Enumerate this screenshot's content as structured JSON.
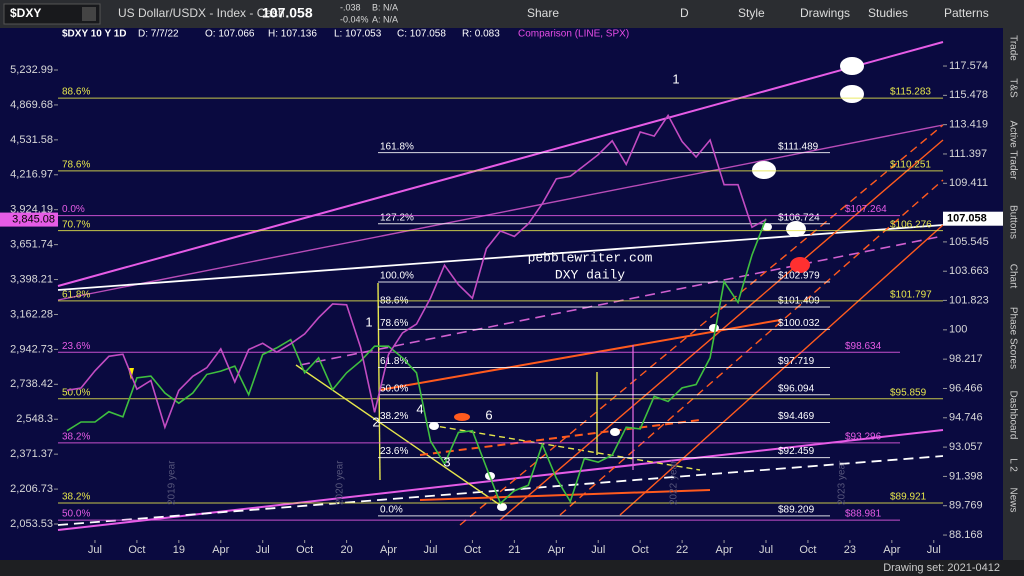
{
  "toolbar": {
    "symbol": "$DXY",
    "description": "US Dollar/USDX - Index - Cash",
    "last": "107.058",
    "change": "-.038",
    "change_pct": "-0.04%",
    "bid": "B: N/A",
    "ask": "A: N/A",
    "buttons": [
      "Share",
      "D",
      "Style",
      "Drawings",
      "Studies",
      "Patterns"
    ]
  },
  "header": {
    "symbol": "$DXY 10 Y 1D",
    "fields": [
      "D: 7/7/22",
      "O: 107.066",
      "H: 107.136",
      "L: 107.053",
      "C: 107.058",
      "R: 0.083"
    ],
    "comparison": "Comparison (LINE, SPX)"
  },
  "chart_data": {
    "type": "line",
    "categories": [
      null,
      null,
      "Jul",
      null,
      null,
      "Oct",
      null,
      null,
      "19",
      null,
      null,
      "Apr",
      null,
      null,
      "Jul",
      null,
      null,
      "Oct",
      null,
      null,
      "20",
      null,
      null,
      "Apr",
      null,
      null,
      "Jul",
      null,
      null,
      "Oct",
      null,
      null,
      "21",
      null,
      null,
      "Apr",
      null,
      null,
      "Jul",
      null,
      null,
      "Oct",
      null,
      null,
      "22",
      null,
      null,
      "Apr",
      null,
      null,
      "Jul",
      null,
      null,
      "Oct",
      null,
      null,
      "23",
      null,
      null,
      "Apr",
      null,
      null,
      "Jul"
    ],
    "series": [
      {
        "name": "$DXY",
        "color": "#3fbf3f",
        "values": [
          94.0,
          94.5,
          94.5,
          95.1,
          94.8,
          97.1,
          97.2,
          96.2,
          95.6,
          96.2,
          97.3,
          97.5,
          97.8,
          96.1,
          98.5,
          98.9,
          99.4,
          97.4,
          98.3,
          96.4,
          97.4,
          98.1,
          99.0,
          99.0,
          98.3,
          97.4,
          93.4,
          92.1,
          93.9,
          94.0,
          91.9,
          89.9,
          90.6,
          90.9,
          93.2,
          91.3,
          90.0,
          92.4,
          92.2,
          92.6,
          94.2,
          94.1,
          96.0,
          95.7,
          96.5,
          96.7,
          98.3,
          103.0,
          101.7,
          104.7,
          107.058,
          null,
          null,
          null,
          null,
          null,
          null,
          null,
          null,
          null,
          null,
          null,
          null
        ]
      },
      {
        "name": "SPX",
        "color": "#c24cc2",
        "axis": "y2",
        "values": [
          2705,
          2718,
          2816,
          2901,
          2914,
          2711,
          2760,
          2507,
          2704,
          2784,
          2834,
          2946,
          2752,
          2942,
          2980,
          2926,
          2977,
          3038,
          3141,
          3231,
          3226,
          2954,
          2585,
          2912,
          3044,
          3100,
          3271,
          3500,
          3363,
          3270,
          3622,
          3756,
          3714,
          3811,
          3973,
          4181,
          4204,
          4298,
          4395,
          4523,
          4308,
          4605,
          4567,
          4766,
          4516,
          4374,
          4530,
          4132,
          4132,
          3785,
          3845.08,
          null,
          null,
          null,
          null,
          null,
          null,
          null,
          null,
          null,
          null,
          null,
          null
        ]
      }
    ],
    "log_scale": true,
    "ylim": [
      87.9,
      120.35
    ],
    "yticks": [
      117.574,
      115.478,
      113.419,
      111.397,
      109.411,
      105.545,
      103.663,
      101.823,
      100,
      98.217,
      96.466,
      94.746,
      93.057,
      91.398,
      89.769,
      88.168
    ],
    "y2lim": [
      1987,
      5706
    ],
    "y2ticks": [
      {
        "value": 5232.99,
        "label": "5,232.99"
      },
      {
        "value": 4869.68,
        "label": "4,869.68"
      },
      {
        "value": 4531.58,
        "label": "4,531.58"
      },
      {
        "value": 4216.97,
        "label": "4,216.97"
      },
      {
        "value": 3924.19,
        "label": "3,924.19"
      },
      {
        "value": 3651.74,
        "label": "3,651.74"
      },
      {
        "value": 3398.21,
        "label": "3,398.21"
      },
      {
        "value": 3162.28,
        "label": "3,162.28"
      },
      {
        "value": 2942.73,
        "label": "2,942.73"
      },
      {
        "value": 2738.42,
        "label": "2,738.42"
      },
      {
        "value": 2548.3,
        "label": "2,548.3"
      },
      {
        "value": 2371.37,
        "label": "2,371.37"
      },
      {
        "value": 2206.73,
        "label": "2,206.73"
      },
      {
        "value": 2053.53,
        "label": "2,053.53"
      }
    ],
    "y_last": 107.058,
    "y2_last": {
      "value": 3845.08,
      "label": "3,845.08"
    },
    "fib_sets": [
      {
        "color": "#ffffff",
        "levels": [
          {
            "pct": "161.8%",
            "price": 111.489,
            "price_label": "$111.489"
          },
          {
            "pct": "127.2%",
            "price": 106.724,
            "price_label": "$106.724"
          },
          {
            "pct": "100.0%",
            "price": 102.979,
            "price_label": "$102.979"
          },
          {
            "pct": "88.6%",
            "price": 101.409,
            "price_label": "$101.409"
          },
          {
            "pct": "78.6%",
            "price": 100.032,
            "price_label": "$100.032"
          },
          {
            "pct": "61.8%",
            "price": 97.719,
            "price_label": "$97.719"
          },
          {
            "pct": "50.0%",
            "price": 96.094,
            "price_label": "$96.094"
          },
          {
            "pct": "38.2%",
            "price": 94.469,
            "price_label": "$94.469"
          },
          {
            "pct": "23.6%",
            "price": 92.459,
            "price_label": "$92.459"
          },
          {
            "pct": "0.0%",
            "price": 89.209,
            "price_label": "$89.209"
          }
        ]
      },
      {
        "color": "#e6e64c",
        "levels": [
          {
            "pct": "88.6%",
            "price": 115.283,
            "price_label": "$115.283"
          },
          {
            "pct": "78.6%",
            "price": 110.251,
            "price_label": "$110.251"
          },
          {
            "pct": "70.7%",
            "price": 106.276,
            "price_label": "$106.276"
          },
          {
            "pct": "61.8%",
            "price": 101.797,
            "price_label": "$101.797"
          },
          {
            "pct": "50.0%",
            "price": 95.859,
            "price_label": "$95.859"
          },
          {
            "pct": "38.2%",
            "price": 89.921,
            "price_label": "$89.921"
          }
        ]
      },
      {
        "color": "#e65ce6",
        "levels": [
          {
            "pct": "0.0%",
            "price": 107.264,
            "price_label": "$107.264"
          },
          {
            "pct": "23.6%",
            "price": 98.634,
            "price_label": "$98.634"
          },
          {
            "pct": "38.2%",
            "price": 93.296,
            "price_label": "$93.296"
          },
          {
            "pct": "50.0%",
            "price": 88.981,
            "price_label": "$88.981"
          }
        ]
      }
    ],
    "annotations": [
      "pebblewriter.com",
      "DXY daily"
    ],
    "waves": [
      "1",
      "1",
      "2",
      "3",
      "4",
      "6"
    ],
    "year_labels": [
      "2019 year",
      "2020 year",
      "2022 year",
      "2023 year"
    ]
  },
  "sidebar_tabs": [
    "Trade",
    "T&S",
    "Active Trader",
    "Buttons",
    "Chart",
    "Phase Scores",
    "Dashboard",
    "L 2",
    "News"
  ],
  "status": "Drawing set: 2021-0412"
}
